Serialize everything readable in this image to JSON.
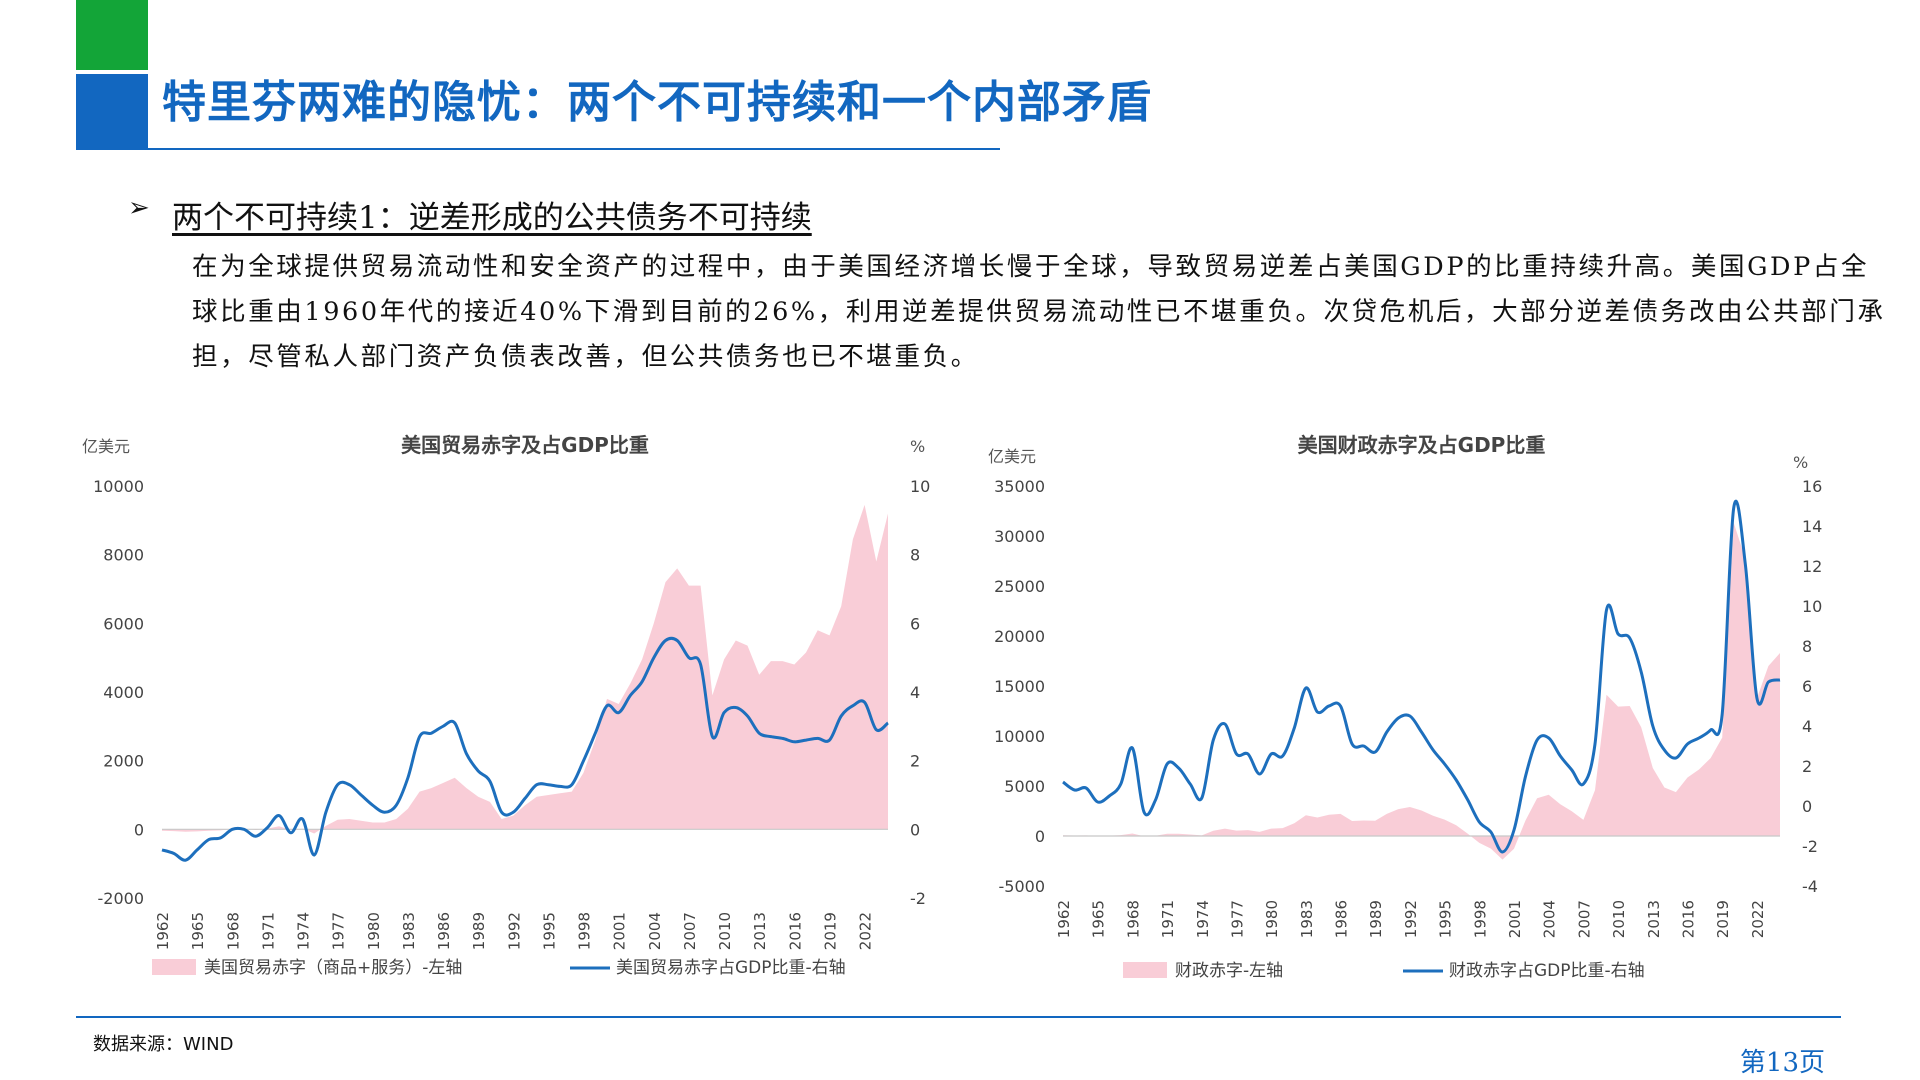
{
  "header": {
    "title": "特里芬两难的隐忧：两个不可持续和一个内部矛盾",
    "bullet_symbol": "➢",
    "subtitle": "两个不可持续1：逆差形成的公共债务不可持续",
    "body": "在为全球提供贸易流动性和安全资产的过程中，由于美国经济增长慢于全球，导致贸易逆差占美国GDP的比重持续升高。美国GDP占全球比重由1960年代的接近40%下滑到目前的26%，利用逆差提供贸易流动性已不堪重负。次贷危机后，大部分逆差债务改由公共部门承担，尽管私人部门资产负债表改善，但公共债务也已不堪重负。"
  },
  "footer": {
    "source": "数据来源：WIND",
    "page": "第13页"
  },
  "colors": {
    "brand_blue": "#1267c0",
    "brand_green": "#13a538",
    "area_pink": "#f9cdd7",
    "line_blue": "#1d6fbd"
  },
  "chart_data": [
    {
      "type": "area",
      "title": "美国贸易赤字及占GDP比重",
      "left_unit": "亿美元",
      "right_unit": "%",
      "ylim_left": [
        -2000,
        10000
      ],
      "yticks_left": [
        -2000,
        0,
        2000,
        4000,
        6000,
        8000,
        10000
      ],
      "ylim_right": [
        -2,
        10
      ],
      "yticks_right": [
        -2,
        0,
        2,
        4,
        6,
        8,
        10
      ],
      "xlim": [
        1962,
        2024
      ],
      "xticks": [
        1962,
        1965,
        1968,
        1971,
        1974,
        1977,
        1980,
        1983,
        1986,
        1989,
        1992,
        1995,
        1998,
        2001,
        2004,
        2007,
        2010,
        2013,
        2016,
        2019,
        2022
      ],
      "legend_position": "bottom",
      "series": [
        {
          "name": "美国贸易赤字（商品+服务）-左轴",
          "kind": "area",
          "axis": "left",
          "x": [
            1962,
            1963,
            1964,
            1965,
            1966,
            1967,
            1968,
            1969,
            1970,
            1971,
            1972,
            1973,
            1974,
            1975,
            1976,
            1977,
            1978,
            1979,
            1980,
            1981,
            1982,
            1983,
            1984,
            1985,
            1986,
            1987,
            1988,
            1989,
            1990,
            1991,
            1992,
            1993,
            1994,
            1995,
            1996,
            1997,
            1998,
            1999,
            2000,
            2001,
            2002,
            2003,
            2004,
            2005,
            2006,
            2007,
            2008,
            2009,
            2010,
            2011,
            2012,
            2013,
            2014,
            2015,
            2016,
            2017,
            2018,
            2019,
            2020,
            2021,
            2022,
            2023,
            2024
          ],
          "values": [
            -40,
            -50,
            -70,
            -60,
            -40,
            -30,
            10,
            20,
            -20,
            20,
            90,
            -20,
            20,
            -120,
            100,
            280,
            300,
            250,
            200,
            200,
            300,
            600,
            1100,
            1200,
            1350,
            1500,
            1200,
            950,
            800,
            300,
            400,
            700,
            950,
            1000,
            1050,
            1100,
            1650,
            2600,
            3800,
            3650,
            4250,
            4950,
            6000,
            7200,
            7600,
            7100,
            7100,
            3900,
            4950,
            5500,
            5350,
            4500,
            4900,
            4900,
            4800,
            5150,
            5800,
            5650,
            6500,
            8450,
            9450,
            7800,
            9200
          ]
        },
        {
          "name": "美国贸易赤字占GDP比重-右轴",
          "kind": "line",
          "axis": "right",
          "x": [
            1962,
            1963,
            1964,
            1965,
            1966,
            1967,
            1968,
            1969,
            1970,
            1971,
            1972,
            1973,
            1974,
            1975,
            1976,
            1977,
            1978,
            1979,
            1980,
            1981,
            1982,
            1983,
            1984,
            1985,
            1986,
            1987,
            1988,
            1989,
            1990,
            1991,
            1992,
            1993,
            1994,
            1995,
            1996,
            1997,
            1998,
            1999,
            2000,
            2001,
            2002,
            2003,
            2004,
            2005,
            2006,
            2007,
            2008,
            2009,
            2010,
            2011,
            2012,
            2013,
            2014,
            2015,
            2016,
            2017,
            2018,
            2019,
            2020,
            2021,
            2022,
            2023,
            2024
          ],
          "values": [
            -0.6,
            -0.7,
            -0.9,
            -0.6,
            -0.3,
            -0.25,
            0,
            0,
            -0.2,
            0.05,
            0.4,
            -0.1,
            0.3,
            -0.75,
            0.5,
            1.3,
            1.3,
            1.0,
            0.7,
            0.5,
            0.7,
            1.5,
            2.7,
            2.8,
            3.0,
            3.1,
            2.2,
            1.7,
            1.4,
            0.5,
            0.5,
            0.9,
            1.3,
            1.3,
            1.25,
            1.3,
            2.0,
            2.8,
            3.6,
            3.4,
            3.9,
            4.3,
            5.0,
            5.5,
            5.5,
            5.0,
            4.8,
            2.7,
            3.4,
            3.55,
            3.3,
            2.8,
            2.7,
            2.65,
            2.55,
            2.6,
            2.65,
            2.6,
            3.3,
            3.6,
            3.7,
            2.9,
            3.1
          ]
        }
      ]
    },
    {
      "type": "area",
      "title": "美国财政赤字及占GDP比重",
      "left_unit": "亿美元",
      "right_unit": "%",
      "ylim_left": [
        -5000,
        35000
      ],
      "yticks_left": [
        -5000,
        0,
        5000,
        10000,
        15000,
        20000,
        25000,
        30000,
        35000
      ],
      "ylim_right": [
        -4,
        16
      ],
      "yticks_right": [
        -4,
        -2,
        0,
        2,
        4,
        6,
        8,
        10,
        12,
        14,
        16
      ],
      "xlim": [
        1962,
        2024
      ],
      "xticks": [
        1962,
        1965,
        1968,
        1971,
        1974,
        1977,
        1980,
        1983,
        1986,
        1989,
        1992,
        1995,
        1998,
        2001,
        2004,
        2007,
        2010,
        2013,
        2016,
        2019,
        2022
      ],
      "legend_position": "bottom",
      "series": [
        {
          "name": "财政赤字-左轴",
          "kind": "area",
          "axis": "left",
          "x": [
            1962,
            1963,
            1964,
            1965,
            1966,
            1967,
            1968,
            1969,
            1970,
            1971,
            1972,
            1973,
            1974,
            1975,
            1976,
            1977,
            1978,
            1979,
            1980,
            1981,
            1982,
            1983,
            1984,
            1985,
            1986,
            1987,
            1988,
            1989,
            1990,
            1991,
            1992,
            1993,
            1994,
            1995,
            1996,
            1997,
            1998,
            1999,
            2000,
            2001,
            2002,
            2003,
            2004,
            2005,
            2006,
            2007,
            2008,
            2009,
            2010,
            2011,
            2012,
            2013,
            2014,
            2015,
            2016,
            2017,
            2018,
            2019,
            2020,
            2021,
            2022,
            2023,
            2024
          ],
          "values": [
            70,
            50,
            60,
            10,
            40,
            90,
            250,
            -30,
            30,
            230,
            230,
            150,
            60,
            530,
            740,
            540,
            590,
            410,
            740,
            790,
            1280,
            2080,
            1850,
            2120,
            2210,
            1500,
            1550,
            1530,
            2210,
            2690,
            2900,
            2550,
            2030,
            1640,
            1070,
            220,
            -690,
            -1260,
            -2360,
            -1280,
            1580,
            3780,
            4130,
            3180,
            2480,
            1610,
            4590,
            14130,
            12940,
            13000,
            10870,
            6800,
            4850,
            4390,
            5850,
            6650,
            7790,
            9840,
            31320,
            27750,
            13760,
            17000,
            18300
          ]
        },
        {
          "name": "财政赤字占GDP比重-右轴",
          "kind": "line",
          "axis": "right",
          "x": [
            1962,
            1963,
            1964,
            1965,
            1966,
            1967,
            1968,
            1969,
            1970,
            1971,
            1972,
            1973,
            1974,
            1975,
            1976,
            1977,
            1978,
            1979,
            1980,
            1981,
            1982,
            1983,
            1984,
            1985,
            1986,
            1987,
            1988,
            1989,
            1990,
            1991,
            1992,
            1993,
            1994,
            1995,
            1996,
            1997,
            1998,
            1999,
            2000,
            2001,
            2002,
            2003,
            2004,
            2005,
            2006,
            2007,
            2008,
            2009,
            2010,
            2011,
            2012,
            2013,
            2014,
            2015,
            2016,
            2017,
            2018,
            2019,
            2020,
            2021,
            2022,
            2023,
            2024
          ],
          "values": [
            1.2,
            0.8,
            0.9,
            0.2,
            0.5,
            1.1,
            2.9,
            -0.3,
            0.3,
            2.1,
            1.9,
            1.1,
            0.4,
            3.3,
            4.1,
            2.6,
            2.6,
            1.6,
            2.6,
            2.5,
            3.9,
            5.9,
            4.7,
            5.0,
            5.0,
            3.1,
            3.0,
            2.7,
            3.7,
            4.4,
            4.5,
            3.7,
            2.8,
            2.1,
            1.3,
            0.3,
            -0.8,
            -1.3,
            -2.3,
            -1.2,
            1.5,
            3.3,
            3.4,
            2.5,
            1.8,
            1.1,
            3.1,
            9.8,
            8.6,
            8.4,
            6.7,
            4.0,
            2.8,
            2.4,
            3.1,
            3.4,
            3.8,
            4.6,
            14.9,
            12.1,
            5.4,
            6.2,
            6.3
          ]
        }
      ]
    }
  ]
}
